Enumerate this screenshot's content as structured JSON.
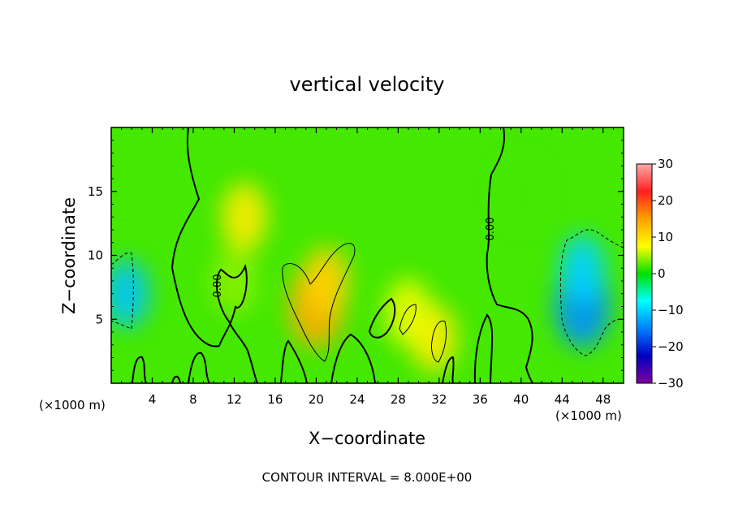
{
  "chart_data": {
    "type": "heatmap",
    "title": "vertical velocity",
    "xlabel": "X−coordinate",
    "ylabel": "Z−coordinate",
    "x_unit_left": "(×1000 m)",
    "x_unit_right": "(×1000 m)",
    "xlim": [
      0,
      50
    ],
    "ylim": [
      0,
      20
    ],
    "x_ticks": [
      "4",
      "8",
      "12",
      "16",
      "20",
      "24",
      "28",
      "32",
      "36",
      "40",
      "44",
      "48"
    ],
    "y_ticks": [
      "5",
      "10",
      "15"
    ],
    "colorbar": {
      "range": [
        -30,
        30
      ],
      "ticks": [
        "30",
        "20",
        "10",
        "0",
        "−10",
        "−20",
        "−30"
      ],
      "colors": [
        "#ffaaaa",
        "#ff2020",
        "#ffa000",
        "#ffff00",
        "#00e000",
        "#00ffff",
        "#0080ff",
        "#0000c0",
        "#8000a0"
      ]
    },
    "contour_interval_text": "CONTOUR INTERVAL = 8.000E+00",
    "contour_labels": [
      "0.00",
      "0.00"
    ],
    "features": [
      {
        "x": 20,
        "z": 6,
        "value": 14
      },
      {
        "x": 21,
        "z": 8,
        "value": 11
      },
      {
        "x": 31.5,
        "z": 3.5,
        "value": 9
      },
      {
        "x": 29,
        "z": 5.5,
        "value": 7
      },
      {
        "x": 13,
        "z": 13,
        "value": 9
      },
      {
        "x": 46,
        "z": 6,
        "value": -14
      },
      {
        "x": 46,
        "z": 9,
        "value": -10
      },
      {
        "x": 1.5,
        "z": 7,
        "value": -11
      },
      {
        "x": 12,
        "z": 8,
        "value": 4
      },
      {
        "x": 40,
        "z": 15,
        "value": 2
      }
    ],
    "background_value": 2
  }
}
